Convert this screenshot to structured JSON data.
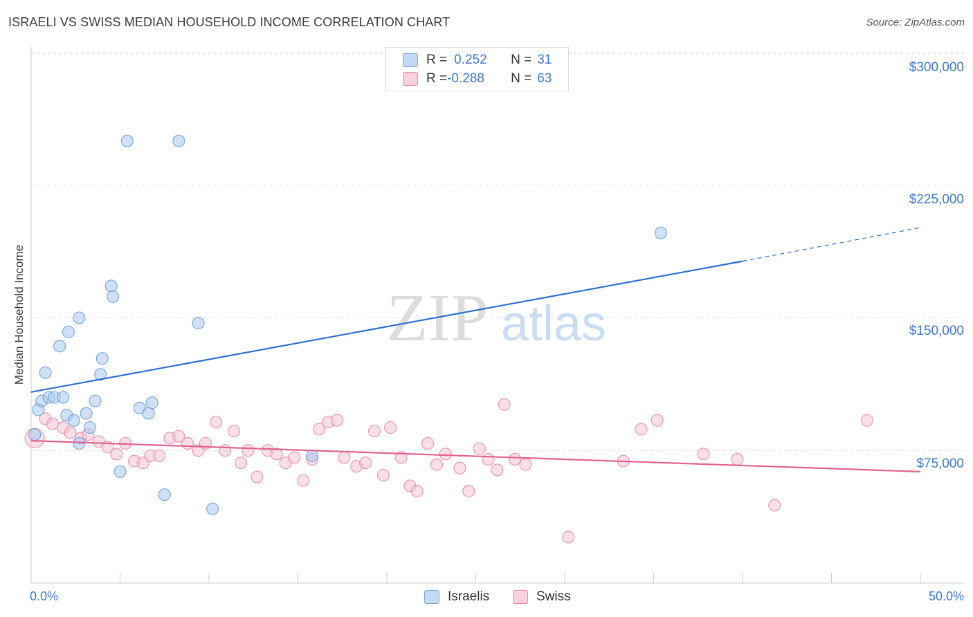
{
  "header": {
    "title": "ISRAELI VS SWISS MEDIAN HOUSEHOLD INCOME CORRELATION CHART",
    "source": "Source: ZipAtlas.com"
  },
  "watermark": {
    "zip": "ZIP",
    "atlas": "atlas"
  },
  "legend_top": {
    "rows": [
      {
        "r_key": "R = ",
        "r_val": "0.252",
        "n_key": "N = ",
        "n_val": "31",
        "color": "#a9c8ef"
      },
      {
        "r_key": "R = ",
        "r_val": "-0.288",
        "n_key": "N = ",
        "n_val": "63",
        "color": "#f4b8c9"
      }
    ]
  },
  "legend_bottom": {
    "israelis": "Israelis",
    "swiss": "Swiss"
  },
  "colors": {
    "israelis_fill": "#a9c8ef",
    "israelis_stroke": "#6a9fd8",
    "israelis_line": "#2a6fcf",
    "swiss_fill": "#f7c5d4",
    "swiss_stroke": "#e88aa8",
    "swiss_line": "#e0628d",
    "tick_text": "#3a78c9"
  },
  "chart_data": {
    "type": "scatter",
    "title": "ISRAELI VS SWISS MEDIAN HOUSEHOLD INCOME CORRELATION CHART",
    "xlabel": "",
    "ylabel": "Median Household Income",
    "xlim": [
      0,
      50
    ],
    "ylim": [
      0,
      310000
    ],
    "x_tick_labels": [
      "0.0%",
      "50.0%"
    ],
    "y_ticks": [
      75000,
      150000,
      225000,
      300000
    ],
    "y_tick_labels": [
      "$75,000",
      "$150,000",
      "$225,000",
      "$300,000"
    ],
    "grid": true,
    "legend_position": "top-center",
    "series": [
      {
        "name": "Israelis",
        "r": 0.252,
        "n": 31,
        "points": [
          [
            0.2,
            84000
          ],
          [
            0.4,
            98000
          ],
          [
            0.6,
            103000
          ],
          [
            0.8,
            119000
          ],
          [
            1.0,
            105000
          ],
          [
            1.3,
            105000
          ],
          [
            1.6,
            134000
          ],
          [
            1.8,
            105000
          ],
          [
            2.0,
            95000
          ],
          [
            2.1,
            142000
          ],
          [
            2.4,
            92000
          ],
          [
            2.7,
            150000
          ],
          [
            3.1,
            96000
          ],
          [
            3.3,
            88000
          ],
          [
            3.6,
            103000
          ],
          [
            3.9,
            118000
          ],
          [
            4.0,
            127000
          ],
          [
            4.5,
            168000
          ],
          [
            4.6,
            162000
          ],
          [
            5.0,
            63000
          ],
          [
            5.4,
            250000
          ],
          [
            6.1,
            99000
          ],
          [
            6.6,
            96000
          ],
          [
            6.8,
            102000
          ],
          [
            7.5,
            50000
          ],
          [
            8.3,
            250000
          ],
          [
            9.4,
            147000
          ],
          [
            10.2,
            42000
          ],
          [
            15.8,
            72000
          ],
          [
            35.4,
            198000
          ],
          [
            2.7,
            79000
          ]
        ],
        "trend": {
          "x0": 0,
          "y0": 108000,
          "x1": 40,
          "y1": 182000,
          "x_dashed_end": 50,
          "y_dashed_end": 201000
        }
      },
      {
        "name": "Swiss",
        "r": -0.288,
        "n": 63,
        "points": [
          [
            0.2,
            82000
          ],
          [
            0.8,
            93000
          ],
          [
            1.2,
            90000
          ],
          [
            1.8,
            88000
          ],
          [
            2.2,
            85000
          ],
          [
            2.8,
            82000
          ],
          [
            3.2,
            84000
          ],
          [
            3.8,
            80000
          ],
          [
            4.3,
            77000
          ],
          [
            4.8,
            73000
          ],
          [
            5.3,
            79000
          ],
          [
            5.8,
            69000
          ],
          [
            6.3,
            68000
          ],
          [
            6.7,
            72000
          ],
          [
            7.2,
            72000
          ],
          [
            7.8,
            82000
          ],
          [
            8.3,
            83000
          ],
          [
            8.8,
            79000
          ],
          [
            9.4,
            75000
          ],
          [
            9.8,
            79000
          ],
          [
            10.4,
            91000
          ],
          [
            10.9,
            75000
          ],
          [
            11.4,
            86000
          ],
          [
            11.8,
            68000
          ],
          [
            12.2,
            75000
          ],
          [
            12.7,
            60000
          ],
          [
            13.3,
            75000
          ],
          [
            13.8,
            73000
          ],
          [
            14.3,
            68000
          ],
          [
            14.8,
            71000
          ],
          [
            15.3,
            58000
          ],
          [
            15.8,
            70000
          ],
          [
            16.2,
            87000
          ],
          [
            16.7,
            91000
          ],
          [
            17.2,
            92000
          ],
          [
            17.6,
            71000
          ],
          [
            18.3,
            66000
          ],
          [
            18.8,
            68000
          ],
          [
            19.3,
            86000
          ],
          [
            19.8,
            61000
          ],
          [
            20.2,
            88000
          ],
          [
            20.8,
            71000
          ],
          [
            21.3,
            55000
          ],
          [
            21.7,
            52000
          ],
          [
            22.3,
            79000
          ],
          [
            22.8,
            67000
          ],
          [
            23.3,
            73000
          ],
          [
            24.1,
            65000
          ],
          [
            24.6,
            52000
          ],
          [
            25.2,
            76000
          ],
          [
            25.7,
            70000
          ],
          [
            26.2,
            64000
          ],
          [
            26.6,
            101000
          ],
          [
            27.2,
            70000
          ],
          [
            27.8,
            67000
          ],
          [
            30.2,
            26000
          ],
          [
            33.3,
            69000
          ],
          [
            34.3,
            87000
          ],
          [
            35.2,
            92000
          ],
          [
            37.8,
            73000
          ],
          [
            39.7,
            70000
          ],
          [
            41.8,
            44000
          ],
          [
            47.0,
            92000
          ]
        ],
        "trend": {
          "x0": 0,
          "y0": 80500,
          "x1": 50,
          "y1": 63000
        }
      }
    ]
  }
}
